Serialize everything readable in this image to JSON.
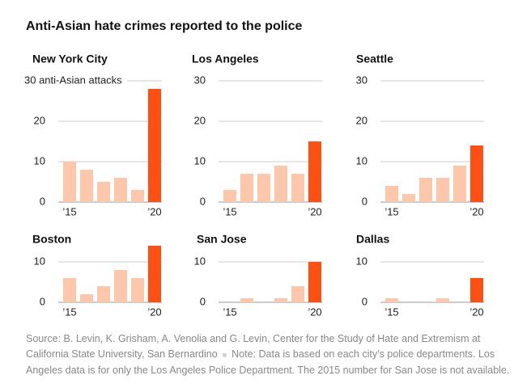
{
  "title": "Anti-Asian hate crimes reported to the police",
  "source": "Source: B. Levin, K. Grisham, A. Venolia and G. Levin, Center for the Study of Hate and Extremism at California State University, San Bernardino",
  "note": "Note: Data is based on each city’s police departments. Los Angeles data is for only the Los Angeles Police Department. The 2015 number for San Jose is not available.",
  "chart_data": [
    {
      "type": "bar",
      "title": "New York City",
      "categories": [
        "’15",
        null,
        null,
        null,
        null,
        "’20"
      ],
      "values": [
        10,
        8,
        5,
        6,
        3,
        28
      ],
      "colors": [
        "#fdc7ab",
        "#fdc7ab",
        "#fdc7ab",
        "#fdc7ab",
        "#fdc7ab",
        "#ff5014"
      ],
      "ylim": [
        0,
        30
      ],
      "yticks": [
        0,
        10,
        20,
        {
          "value": 30,
          "label": "30 anti-Asian attacks"
        }
      ],
      "grid": true
    },
    {
      "type": "bar",
      "title": "Los Angeles",
      "categories": [
        "’15",
        null,
        null,
        null,
        null,
        "’20"
      ],
      "values": [
        3,
        7,
        7,
        9,
        7,
        15
      ],
      "colors": [
        "#fdc7ab",
        "#fdc7ab",
        "#fdc7ab",
        "#fdc7ab",
        "#fdc7ab",
        "#ff5014"
      ],
      "ylim": [
        0,
        30
      ],
      "yticks": [
        0,
        10,
        20,
        30
      ],
      "grid": true
    },
    {
      "type": "bar",
      "title": "Seattle",
      "categories": [
        "’15",
        null,
        null,
        null,
        null,
        "’20"
      ],
      "values": [
        4,
        2,
        6,
        6,
        9,
        14
      ],
      "colors": [
        "#fdc7ab",
        "#fdc7ab",
        "#fdc7ab",
        "#fdc7ab",
        "#fdc7ab",
        "#ff5014"
      ],
      "ylim": [
        0,
        30
      ],
      "yticks": [
        0,
        10,
        20,
        30
      ],
      "grid": true
    },
    {
      "type": "bar",
      "title": "Boston",
      "categories": [
        "’15",
        null,
        null,
        null,
        null,
        "’20"
      ],
      "values": [
        6,
        2,
        4,
        8,
        6,
        14
      ],
      "colors": [
        "#fdc7ab",
        "#fdc7ab",
        "#fdc7ab",
        "#fdc7ab",
        "#fdc7ab",
        "#ff5014"
      ],
      "ylim": [
        0,
        14
      ],
      "yticks": [
        0,
        10
      ],
      "grid": true
    },
    {
      "type": "bar",
      "title": "San Jose",
      "categories": [
        "’15",
        null,
        null,
        null,
        null,
        "’20"
      ],
      "values": [
        null,
        1,
        0,
        1,
        4,
        10
      ],
      "colors": [
        "#fdc7ab",
        "#fdc7ab",
        "#fdc7ab",
        "#fdc7ab",
        "#fdc7ab",
        "#ff5014"
      ],
      "ylim": [
        0,
        10
      ],
      "yticks": [
        0,
        10
      ],
      "grid": true
    },
    {
      "type": "bar",
      "title": "Dallas",
      "categories": [
        "’15",
        null,
        null,
        null,
        null,
        "’20"
      ],
      "values": [
        1,
        0,
        0,
        1,
        0,
        6
      ],
      "colors": [
        "#fdc7ab",
        "#fdc7ab",
        "#fdc7ab",
        "#fdc7ab",
        "#fdc7ab",
        "#ff5014"
      ],
      "ylim": [
        0,
        10
      ],
      "yticks": [
        0,
        10
      ],
      "grid": true
    }
  ]
}
